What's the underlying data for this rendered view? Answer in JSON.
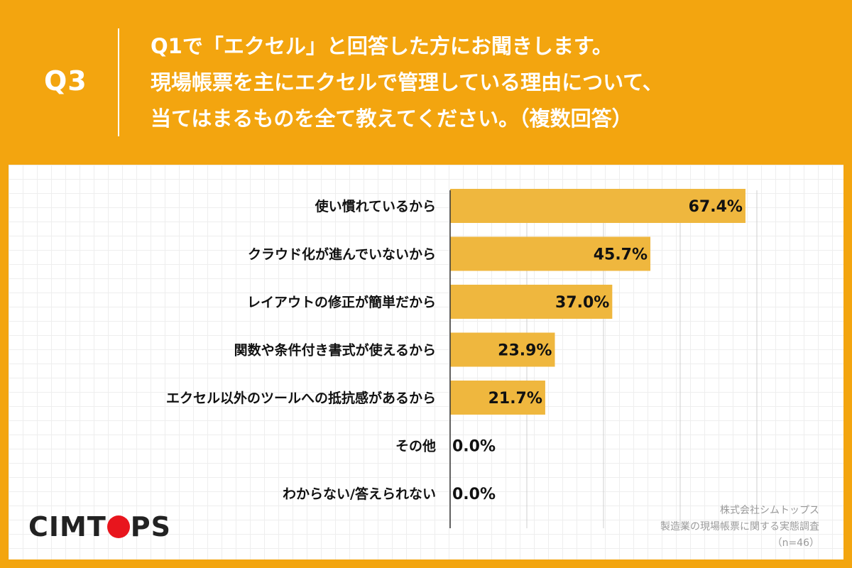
{
  "header": {
    "q_number": "Q3",
    "question_lines": [
      "Q1で「エクセル」と回答した方にお聞きします。",
      "現場帳票を主にエクセルで管理している理由について、",
      "当てはまるものを全て教えてください。（複数回答）"
    ]
  },
  "chart_data": {
    "type": "bar",
    "orientation": "horizontal",
    "categories": [
      "使い慣れているから",
      "クラウド化が進んでいないから",
      "レイアウトの修正が簡単だから",
      "関数や条件付き書式が使えるから",
      "エクセル以外のツールへの抵抗感があるから",
      "その他",
      "わからない/答えられない"
    ],
    "values": [
      67.4,
      45.7,
      37.0,
      23.9,
      21.7,
      0.0,
      0.0
    ],
    "value_labels": [
      "67.4%",
      "45.7%",
      "37.0%",
      "23.9%",
      "21.7%",
      "0.0%",
      "0.0%"
    ],
    "xlim": [
      0,
      70
    ],
    "gridline_step": 17.5,
    "grid": true,
    "bar_color": "#efb73e",
    "title": "",
    "xlabel": "",
    "ylabel": ""
  },
  "logo": {
    "text_before": "CIMT",
    "text_after": "PS",
    "dot_color": "#e8151d"
  },
  "source": {
    "company": "株式会社シムトップス",
    "survey": "製造業の現場帳票に関する実態調査",
    "n": "（n=46）"
  },
  "colors": {
    "background": "#f3a50f",
    "panel": "#ffffff",
    "text": "#111111"
  }
}
